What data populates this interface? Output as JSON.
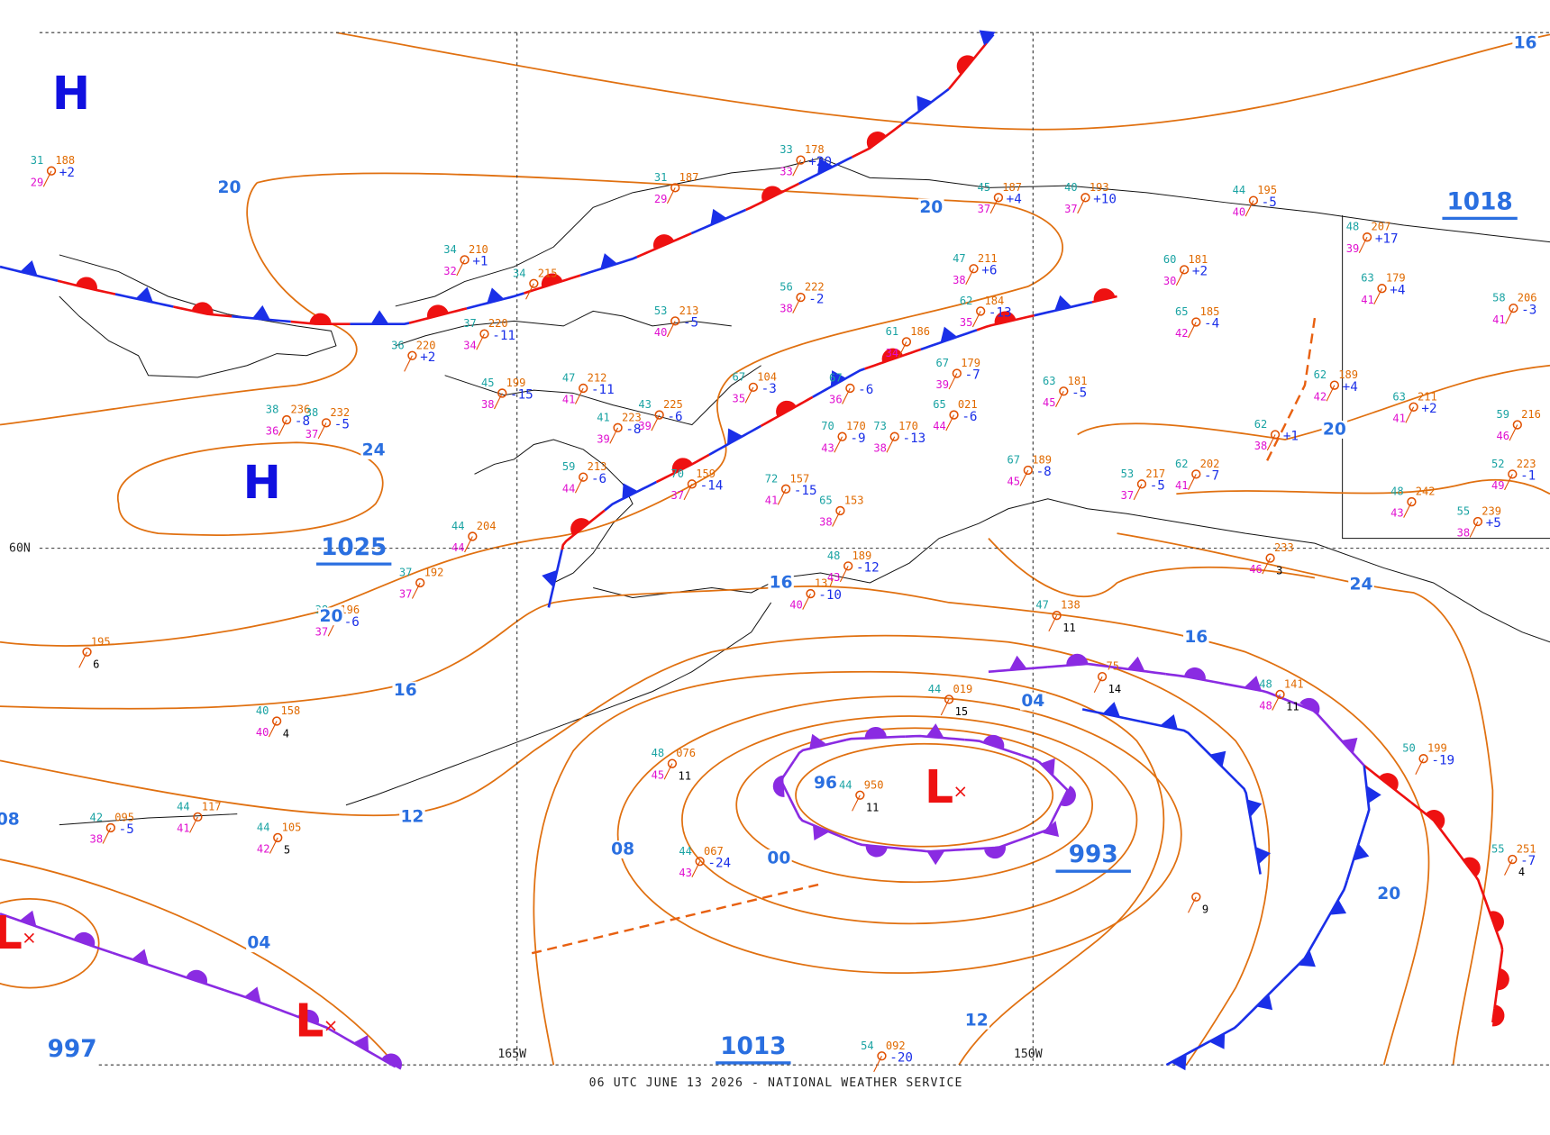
{
  "footer": "06 UTC JUNE 13 2026 - NATIONAL WEATHER SERVICE",
  "grid_labels": [
    "60N",
    "165W",
    "150W"
  ],
  "pressure_centers": [
    {
      "label": "H"
    },
    {
      "label": "H"
    },
    {
      "label": "L"
    },
    {
      "label": "L"
    },
    {
      "label": "L"
    }
  ],
  "center_pressures": [
    "1025",
    "1018",
    "993",
    "1013",
    "997"
  ],
  "isobar_labels": [
    "20",
    "20",
    "24",
    "20",
    "16",
    "12",
    "08",
    "04",
    "16",
    "16",
    "04",
    "96",
    "00",
    "08",
    "12",
    "20",
    "24",
    "20",
    "16"
  ],
  "stations": [
    {
      "temp": 31,
      "pressure": "188",
      "dewpoint": 29,
      "tendency": "+2"
    },
    {
      "temp": 33,
      "pressure": "178",
      "dewpoint": 33,
      "tendency": "+20"
    },
    {
      "temp": 31,
      "pressure": "187",
      "dewpoint": 29
    },
    {
      "temp": 45,
      "pressure": "187",
      "dewpoint": 37,
      "tendency": "+4"
    },
    {
      "temp": 40,
      "pressure": "193",
      "dewpoint": 37,
      "tendency": "+10"
    },
    {
      "temp": 44,
      "pressure": "195",
      "dewpoint": 40,
      "tendency": "-5"
    },
    {
      "temp": 48,
      "pressure": "207",
      "dewpoint": 39,
      "tendency": "+17"
    },
    {
      "temp": 58,
      "pressure": "206",
      "dewpoint": 41,
      "tendency": "-3"
    },
    {
      "temp": 63,
      "pressure": "179",
      "dewpoint": 41,
      "tendency": "+4"
    },
    {
      "temp": 60,
      "pressure": "181",
      "dewpoint": 30,
      "tendency": "+2"
    },
    {
      "temp": 47,
      "pressure": "211",
      "dewpoint": 38,
      "tendency": "+6"
    },
    {
      "temp": 62,
      "pressure": "184",
      "dewpoint": 35,
      "tendency": "-13"
    },
    {
      "temp": 65,
      "pressure": "185",
      "dewpoint": 42,
      "tendency": "-4"
    },
    {
      "temp": 67,
      "pressure": "179",
      "dewpoint": 39,
      "tendency": "-7"
    },
    {
      "temp": 63,
      "pressure": "181",
      "dewpoint": 45,
      "tendency": "-5"
    },
    {
      "temp": 61,
      "pressure": "186",
      "dewpoint": 34
    },
    {
      "temp": 65,
      "pressure": "021",
      "dewpoint": 44,
      "tendency": "-6"
    },
    {
      "temp": 67,
      "dewpoint": 36,
      "tendency": "-6"
    },
    {
      "temp": 67,
      "pressure": "104",
      "dewpoint": 35,
      "tendency": "-3"
    },
    {
      "temp": 56,
      "pressure": "222",
      "dewpoint": 38,
      "tendency": "-2"
    },
    {
      "temp": 53,
      "pressure": "213",
      "dewpoint": 40,
      "tendency": "-5"
    },
    {
      "temp": 34,
      "pressure": "215"
    },
    {
      "temp": 34,
      "pressure": "210",
      "dewpoint": 32,
      "tendency": "+1"
    },
    {
      "temp": 36,
      "pressure": "220",
      "tendency": "+2"
    },
    {
      "temp": 37,
      "pressure": "220",
      "dewpoint": 34,
      "tendency": "-11"
    },
    {
      "temp": 45,
      "pressure": "199",
      "dewpoint": 38,
      "tendency": "-15"
    },
    {
      "temp": 47,
      "pressure": "212",
      "dewpoint": 41,
      "tendency": "-11"
    },
    {
      "temp": 38,
      "pressure": "236",
      "dewpoint": 36,
      "tendency": "-8"
    },
    {
      "temp": 38,
      "pressure": "232",
      "dewpoint": 37,
      "tendency": "-5"
    },
    {
      "temp": 43,
      "pressure": "225",
      "dewpoint": 39,
      "tendency": "-6"
    },
    {
      "temp": 41,
      "pressure": "223",
      "dewpoint": 39,
      "tendency": "-8"
    },
    {
      "temp": 59,
      "pressure": "213",
      "dewpoint": 44,
      "tendency": "-6"
    },
    {
      "temp": 70,
      "pressure": "159",
      "dewpoint": 37,
      "tendency": "-14"
    },
    {
      "temp": 72,
      "pressure": "157",
      "dewpoint": 41,
      "tendency": "-15"
    },
    {
      "temp": 65,
      "pressure": "153",
      "dewpoint": 38
    },
    {
      "temp": 70,
      "pressure": "170",
      "dewpoint": 43,
      "tendency": "-9"
    },
    {
      "temp": 73,
      "pressure": "170",
      "dewpoint": 38,
      "tendency": "-13"
    },
    {
      "temp": 67,
      "pressure": "189",
      "dewpoint": 45,
      "tendency": "-8"
    },
    {
      "temp": 53,
      "pressure": "217",
      "dewpoint": 37,
      "tendency": "-5"
    },
    {
      "temp": 62,
      "pressure": "202",
      "dewpoint": 41,
      "tendency": "-7"
    },
    {
      "temp": 62,
      "dewpoint": 38,
      "tendency": "+1"
    },
    {
      "temp": 62,
      "pressure": "189",
      "dewpoint": 42,
      "tendency": "+4"
    },
    {
      "temp": 63,
      "pressure": "211",
      "dewpoint": 41,
      "tendency": "+2"
    },
    {
      "temp": 59,
      "pressure": "216",
      "dewpoint": 46
    },
    {
      "temp": 52,
      "pressure": "223",
      "dewpoint": 49,
      "tendency": "-1"
    },
    {
      "temp": 48,
      "pressure": "242",
      "dewpoint": 43
    },
    {
      "temp": 55,
      "pressure": "239",
      "dewpoint": 38,
      "tendency": "+5"
    },
    {
      "temp": 44,
      "pressure": "204",
      "dewpoint": 44
    },
    {
      "temp": 37,
      "pressure": "192",
      "dewpoint": 37
    },
    {
      "pressure": "195",
      "code": 6
    },
    {
      "temp": 38,
      "pressure": "196",
      "dewpoint": 37,
      "tendency": "-6"
    },
    {
      "temp": 40,
      "pressure": "158",
      "dewpoint": 40,
      "code": 4
    },
    {
      "temp": 44,
      "pressure": "117",
      "dewpoint": 41
    },
    {
      "temp": 42,
      "pressure": "095",
      "dewpoint": 38,
      "tendency": "-5"
    },
    {
      "temp": 44,
      "pressure": "105",
      "dewpoint": 42,
      "code": 5
    },
    {
      "temp": 44,
      "pressure": "950",
      "code": 11
    },
    {
      "temp": 48,
      "pressure": "076",
      "dewpoint": 45,
      "code": 11
    },
    {
      "temp": 44,
      "pressure": "067",
      "dewpoint": 43,
      "tendency": "-24"
    },
    {
      "temp": 44,
      "pressure": "019",
      "code": 15
    },
    {
      "temp": 54,
      "pressure": "092",
      "tendency": "-20"
    },
    {
      "temp": 47,
      "pressure": "138",
      "code": 11
    },
    {
      "pressure": "75",
      "code": 14
    },
    {
      "temp": 48,
      "pressure": "141",
      "dewpoint": 48,
      "code": 11
    },
    {
      "temp": 50,
      "pressure": "199",
      "tendency": "-19"
    },
    {
      "temp": 55,
      "pressure": "251",
      "tendency": "-7",
      "code": 4
    },
    {
      "code": 9
    },
    {
      "pressure": "233",
      "dewpoint": 46,
      "code": 3
    },
    {
      "pressure": "137",
      "dewpoint": 40,
      "tendency": "-10"
    },
    {
      "temp": 48,
      "pressure": "189",
      "dewpoint": 43,
      "tendency": "-12"
    }
  ]
}
